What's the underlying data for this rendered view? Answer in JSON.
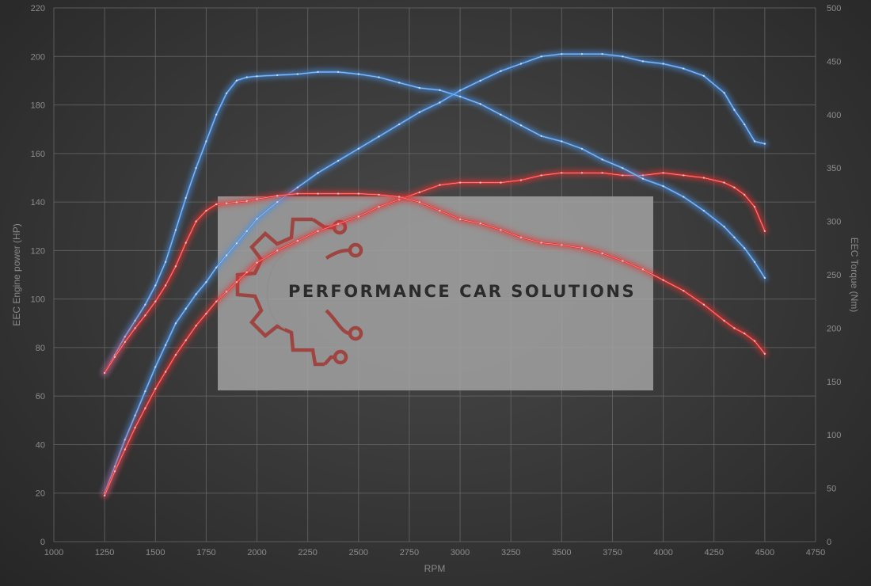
{
  "chart_data": {
    "type": "line",
    "xlabel": "RPM",
    "ylabel": "EEC Engine power (HP)",
    "y2label": "EEC Torque (Nm)",
    "xlim": [
      1000,
      4750
    ],
    "ylim": [
      0,
      220
    ],
    "y2lim": [
      0,
      500
    ],
    "x_ticks": [
      "1000",
      "1250",
      "1500",
      "1750",
      "2000",
      "2250",
      "2500",
      "2750",
      "3000",
      "3250",
      "3500",
      "3750",
      "4000",
      "4250",
      "4500",
      "4750"
    ],
    "y_ticks": [
      "0",
      "20",
      "40",
      "60",
      "80",
      "100",
      "120",
      "140",
      "160",
      "180",
      "200",
      "220"
    ],
    "y2_ticks": [
      "0",
      "50",
      "100",
      "150",
      "200",
      "250",
      "300",
      "350",
      "400",
      "450",
      "500"
    ],
    "grid": true,
    "series": [
      {
        "axis": "left",
        "color": "#4a90e2",
        "x": [
          1250,
          1300,
          1350,
          1400,
          1450,
          1500,
          1550,
          1600,
          1650,
          1700,
          1750,
          1800,
          1850,
          1900,
          1950,
          2000,
          2100,
          2200,
          2300,
          2400,
          2500,
          2600,
          2700,
          2800,
          2900,
          3000,
          3100,
          3200,
          3300,
          3400,
          3500,
          3600,
          3700,
          3800,
          3900,
          4000,
          4100,
          4200,
          4300,
          4350,
          4400,
          4450,
          4500
        ],
        "y": [
          20,
          31,
          42,
          52,
          62,
          72,
          81,
          90,
          96,
          102,
          107,
          113,
          118,
          123,
          128,
          133,
          140,
          146,
          152,
          157,
          162,
          167,
          172,
          177,
          181,
          186,
          190,
          194,
          197,
          200,
          201,
          201,
          201,
          200,
          198,
          197,
          195,
          192,
          185,
          178,
          172,
          165,
          164
        ]
      },
      {
        "axis": "left",
        "color": "#e53333",
        "x": [
          1250,
          1300,
          1350,
          1400,
          1450,
          1500,
          1550,
          1600,
          1650,
          1700,
          1750,
          1800,
          1850,
          1900,
          1950,
          2000,
          2100,
          2200,
          2300,
          2400,
          2500,
          2600,
          2700,
          2800,
          2900,
          3000,
          3100,
          3200,
          3300,
          3400,
          3500,
          3600,
          3700,
          3800,
          3900,
          4000,
          4100,
          4200,
          4300,
          4350,
          4400,
          4450,
          4500
        ],
        "y": [
          19,
          29,
          38,
          47,
          55,
          63,
          70,
          77,
          83,
          89,
          94,
          99,
          103,
          107,
          111,
          115,
          120,
          124,
          128,
          131,
          134,
          138,
          141,
          144,
          147,
          148,
          148,
          148,
          149,
          151,
          152,
          152,
          152,
          151,
          151,
          152,
          151,
          150,
          148,
          146,
          143,
          138,
          128
        ]
      },
      {
        "axis": "right",
        "color": "#4a90e2",
        "x": [
          1250,
          1300,
          1350,
          1400,
          1450,
          1500,
          1550,
          1600,
          1650,
          1700,
          1750,
          1800,
          1850,
          1900,
          1950,
          2000,
          2100,
          2200,
          2300,
          2400,
          2500,
          2600,
          2700,
          2800,
          2900,
          3000,
          3100,
          3200,
          3300,
          3400,
          3500,
          3600,
          3700,
          3800,
          3900,
          4000,
          4100,
          4200,
          4300,
          4350,
          4400,
          4450,
          4500
        ],
        "y": [
          158,
          175,
          192,
          207,
          222,
          240,
          262,
          292,
          322,
          350,
          375,
          400,
          420,
          432,
          435,
          436,
          437,
          438,
          440,
          440,
          438,
          435,
          430,
          425,
          423,
          417,
          410,
          400,
          390,
          380,
          375,
          368,
          358,
          350,
          340,
          333,
          323,
          310,
          295,
          285,
          275,
          262,
          247
        ]
      },
      {
        "axis": "right",
        "color": "#e53333",
        "x": [
          1250,
          1300,
          1350,
          1400,
          1450,
          1500,
          1550,
          1600,
          1650,
          1700,
          1750,
          1800,
          1850,
          1900,
          1950,
          2000,
          2100,
          2200,
          2300,
          2400,
          2500,
          2600,
          2700,
          2800,
          2900,
          3000,
          3100,
          3200,
          3300,
          3400,
          3500,
          3600,
          3700,
          3800,
          3900,
          4000,
          4100,
          4200,
          4300,
          4350,
          4400,
          4450,
          4500
        ],
        "y": [
          158,
          173,
          187,
          200,
          212,
          225,
          240,
          258,
          280,
          300,
          310,
          316,
          317,
          318,
          319,
          321,
          324,
          326,
          326,
          326,
          326,
          325,
          323,
          318,
          310,
          302,
          298,
          292,
          285,
          280,
          278,
          275,
          270,
          263,
          255,
          245,
          235,
          222,
          207,
          200,
          195,
          188,
          176
        ]
      }
    ]
  },
  "watermark": {
    "text": "PERFORMANCE CAR SOLUTIONS",
    "logo": "gear-circuit-logo"
  }
}
